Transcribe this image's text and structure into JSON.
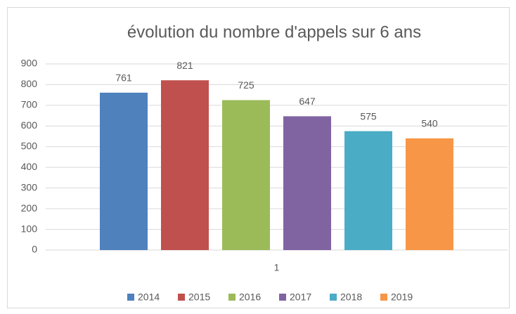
{
  "chart_data": {
    "type": "bar",
    "title": "évolution du nombre d'appels sur 6 ans",
    "categories": [
      "1"
    ],
    "series": [
      {
        "name": "2014",
        "color": "#4f81bd",
        "values": [
          761
        ]
      },
      {
        "name": "2015",
        "color": "#c0504d",
        "values": [
          821
        ]
      },
      {
        "name": "2016",
        "color": "#9bbb59",
        "values": [
          725
        ]
      },
      {
        "name": "2017",
        "color": "#8064a2",
        "values": [
          647
        ]
      },
      {
        "name": "2018",
        "color": "#4bacc6",
        "values": [
          575
        ]
      },
      {
        "name": "2019",
        "color": "#f79646",
        "values": [
          540
        ]
      }
    ],
    "ylim": [
      0,
      900
    ],
    "yticks": [
      0,
      100,
      200,
      300,
      400,
      500,
      600,
      700,
      800,
      900
    ],
    "grid": true,
    "legend": "bottom"
  }
}
